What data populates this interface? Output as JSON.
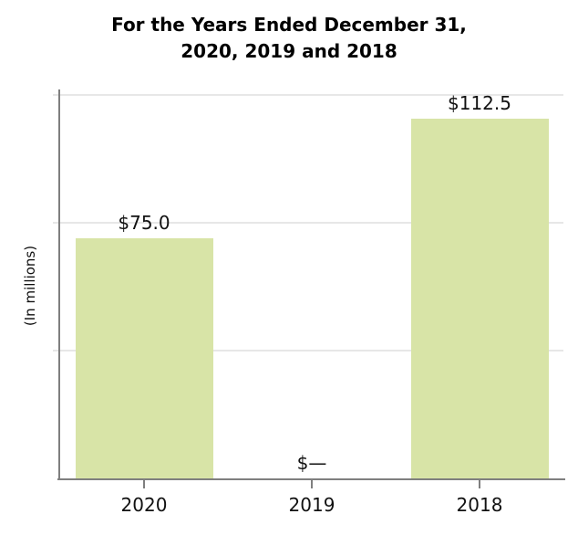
{
  "title": {
    "line1": "For the Years Ended December 31,",
    "line2": "2020, 2019 and 2018"
  },
  "chart_data": {
    "type": "bar",
    "title": "For the Years Ended December 31, 2020, 2019 and 2018",
    "categories": [
      "2020",
      "2019",
      "2018"
    ],
    "values": [
      75.0,
      0,
      112.5
    ],
    "value_labels": [
      "$75.0",
      "$—",
      "$112.5"
    ],
    "xlabel": "",
    "ylabel": "(In millions)",
    "ylim": [
      0,
      121.6
    ],
    "gridline_values": [
      40,
      80,
      120
    ],
    "grid": true,
    "legend": false,
    "bar_color": "#d8e4a7"
  },
  "colors": {
    "bar": "#d8e4a7",
    "axis": "#7f7f7f",
    "gridline": "#e7e7e7",
    "text": "#111111",
    "title_text": "#000000",
    "background": "#ffffff"
  }
}
